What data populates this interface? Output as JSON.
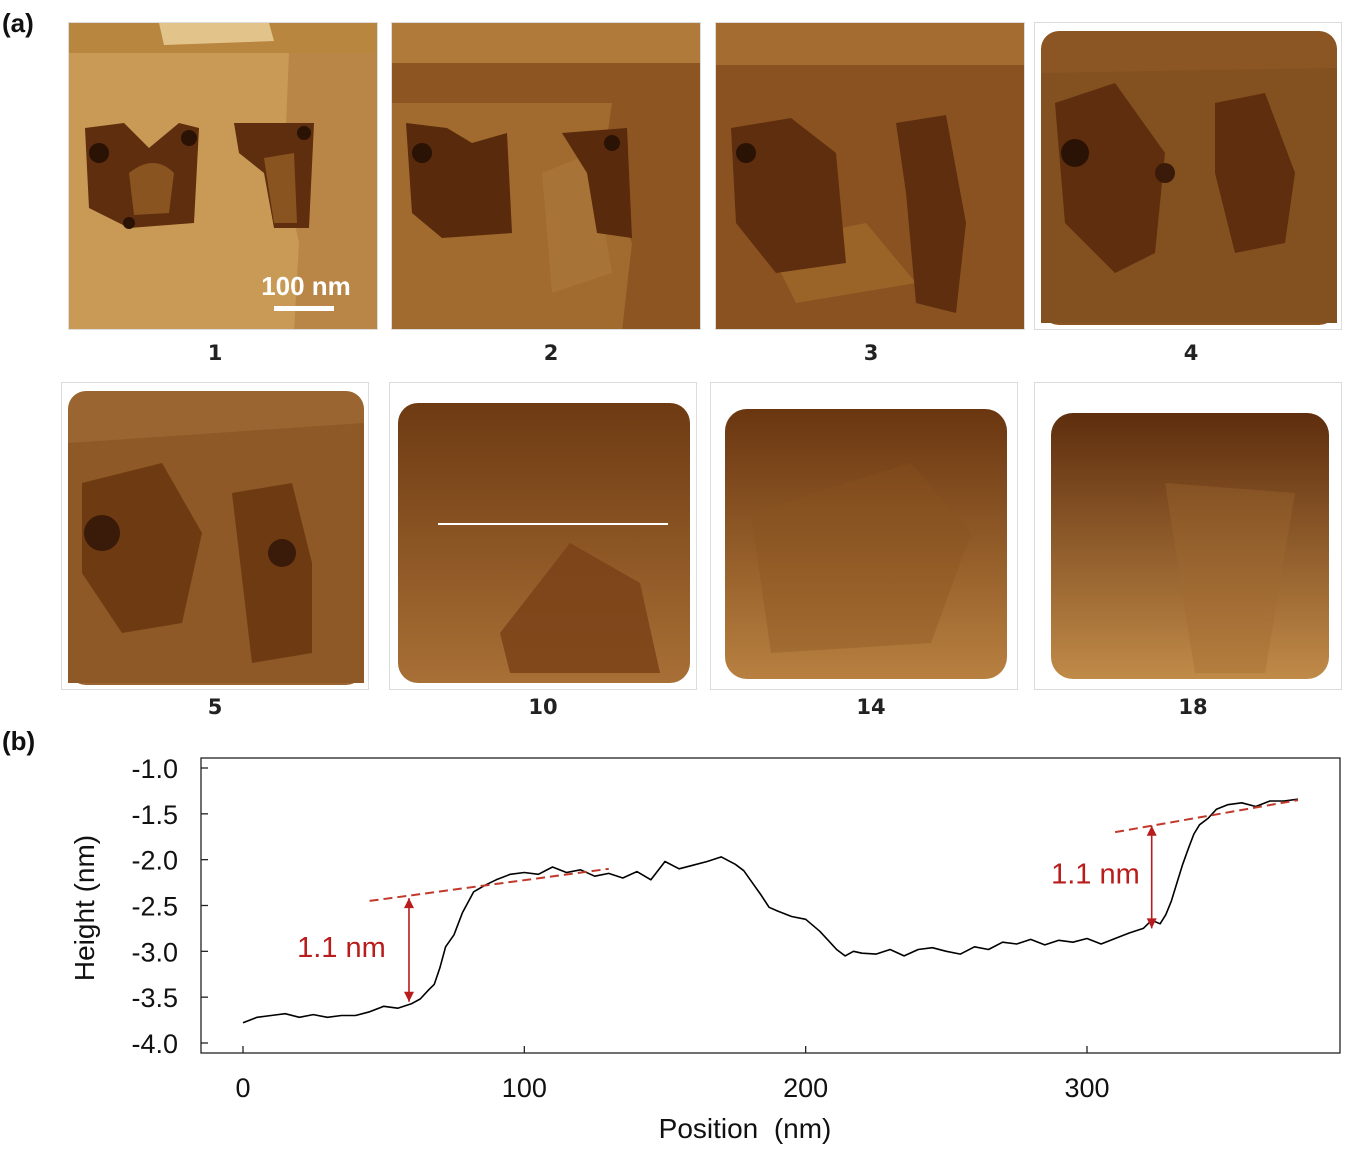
{
  "panel_labels": {
    "a": "(a)",
    "b": "(b)"
  },
  "afm_frames": [
    {
      "label": "1",
      "scale_bar": "100 nm"
    },
    {
      "label": "2"
    },
    {
      "label": "3"
    },
    {
      "label": "4"
    },
    {
      "label": "5"
    },
    {
      "label": "10"
    },
    {
      "label": "14"
    },
    {
      "label": "18"
    }
  ],
  "colors": {
    "afm_light": "#c99a55",
    "afm_mid": "#a16a2e",
    "afm_dark": "#6e3a10",
    "afm_darkest": "#3a1a08",
    "profile_line": "#000000",
    "fit_line": "#c0392b",
    "step_annotation": "#b81c1c"
  },
  "chart_data": {
    "type": "line",
    "xlabel": "Position  (nm)",
    "ylabel": "Height  (nm)",
    "xlim": [
      -15,
      390
    ],
    "ylim": [
      -4.1,
      -0.9
    ],
    "xticks": [
      0,
      100,
      200,
      300
    ],
    "yticks": [
      -4.0,
      -3.5,
      -3.0,
      -2.5,
      -2.0,
      -1.5,
      -1.0
    ],
    "ytick_labels": [
      "-4.0",
      "-3.5",
      "-3.0",
      "-2.5",
      "-2.0",
      "-1.5",
      "-1.0"
    ],
    "grid": false,
    "series": [
      {
        "x": [
          0,
          5,
          10,
          15,
          20,
          25,
          30,
          35,
          40,
          45,
          50,
          55,
          60,
          63,
          66,
          68,
          70,
          72,
          75,
          78,
          82,
          86,
          90,
          95,
          100,
          105,
          110,
          115,
          120,
          125,
          130,
          135,
          140,
          145,
          150,
          155,
          160,
          165,
          170,
          175,
          178,
          181,
          184,
          187,
          190,
          195,
          200,
          205,
          208,
          211,
          214,
          217,
          220,
          225,
          230,
          235,
          240,
          245,
          250,
          255,
          260,
          265,
          270,
          275,
          280,
          285,
          290,
          295,
          300,
          305,
          310,
          315,
          320,
          323,
          326,
          328,
          330,
          332,
          334,
          336,
          338,
          340,
          343,
          346,
          350,
          355,
          360,
          365,
          370,
          375
        ],
        "y": [
          -3.78,
          -3.72,
          -3.7,
          -3.68,
          -3.72,
          -3.69,
          -3.72,
          -3.7,
          -3.7,
          -3.66,
          -3.6,
          -3.62,
          -3.57,
          -3.52,
          -3.42,
          -3.36,
          -3.18,
          -2.95,
          -2.82,
          -2.58,
          -2.35,
          -2.28,
          -2.22,
          -2.16,
          -2.14,
          -2.16,
          -2.08,
          -2.14,
          -2.11,
          -2.18,
          -2.15,
          -2.2,
          -2.13,
          -2.22,
          -2.02,
          -2.1,
          -2.06,
          -2.02,
          -1.97,
          -2.05,
          -2.12,
          -2.25,
          -2.38,
          -2.52,
          -2.56,
          -2.62,
          -2.65,
          -2.78,
          -2.88,
          -2.98,
          -3.05,
          -3.0,
          -3.02,
          -3.03,
          -2.98,
          -3.05,
          -2.98,
          -2.96,
          -3.0,
          -3.03,
          -2.95,
          -2.98,
          -2.9,
          -2.92,
          -2.87,
          -2.93,
          -2.88,
          -2.9,
          -2.86,
          -2.92,
          -2.86,
          -2.8,
          -2.75,
          -2.66,
          -2.7,
          -2.6,
          -2.45,
          -2.25,
          -2.05,
          -1.88,
          -1.72,
          -1.62,
          -1.55,
          -1.45,
          -1.4,
          -1.38,
          -1.42,
          -1.36,
          -1.36,
          -1.34
        ]
      }
    ],
    "fit_lines": [
      {
        "x": [
          45,
          130
        ],
        "y": [
          -2.45,
          -2.1
        ]
      },
      {
        "x": [
          310,
          375
        ],
        "y": [
          -1.7,
          -1.35
        ]
      }
    ],
    "annotations": [
      {
        "text": "1.1 nm",
        "arrow_x": 59,
        "y_from": -3.55,
        "y_to": -2.42,
        "text_x": 35,
        "text_y": -2.95
      },
      {
        "text": "1.1 nm",
        "arrow_x": 323,
        "y_from": -2.75,
        "y_to": -1.63,
        "text_x": 303,
        "text_y": -2.15
      }
    ]
  }
}
